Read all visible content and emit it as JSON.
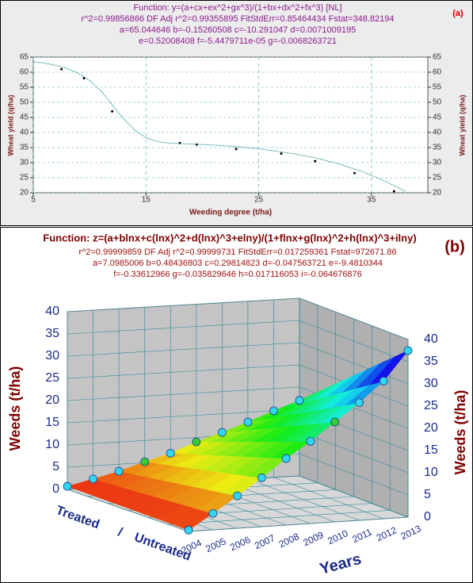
{
  "chart_data": [
    {
      "type": "scatter",
      "title": "Function: y=(a+cx+ex^2+gx^3)/(1+bx+dx^2+fx^3) [NL]",
      "annotations": [
        "r^2=0.99856866 DF Adj r^2=0.99355895 FitStdErr=0.85464434 Fstat=348.82194",
        "a=65.044646 b=-0.15260508 c=-10.291047 d=0.0071009195",
        "e=0.52008408 f=-5.4479711e-05 g=-0.0068263721"
      ],
      "panel_label": "(a)",
      "xlabel": "Weeding degree (t/ha)",
      "ylabel": "Wheat yield (q/ha)",
      "xlim": [
        5,
        40
      ],
      "ylim": [
        20,
        65
      ],
      "xticks": [
        5,
        15,
        25,
        35
      ],
      "yticks": [
        20,
        25,
        30,
        35,
        40,
        45,
        50,
        55,
        60,
        65
      ],
      "grid": true,
      "series": [
        {
          "type": "scatter",
          "color": "#000000",
          "x": [
            7.5,
            9.5,
            12,
            18,
            19.5,
            23,
            27,
            30,
            33.5,
            37
          ],
          "values": [
            61,
            58,
            47,
            36.5,
            36,
            34.5,
            33,
            30.5,
            26.5,
            20.5
          ]
        },
        {
          "type": "line",
          "color": "#3a9a9a",
          "x": [
            5,
            6,
            7,
            8,
            9,
            10,
            11,
            12,
            13,
            14,
            15,
            16,
            17,
            18,
            20,
            22,
            25,
            28,
            30,
            32,
            34,
            36,
            38
          ],
          "values": [
            63.5,
            63,
            62.3,
            61.2,
            59.6,
            57.3,
            53.8,
            49.2,
            44.6,
            40.8,
            38.3,
            37,
            36.5,
            36.3,
            36,
            35.6,
            34.6,
            33,
            31.6,
            29.7,
            27.3,
            24.2,
            20.5
          ]
        }
      ]
    },
    {
      "type": "surface3d",
      "title": "Function: z=(a+blnx+c(lnx)^2+d(lnx)^3+elny)/(1+flnx+g(lnx)^2+h(lnx)^3+ilny)",
      "annotations": [
        "r^2=0.99999859  DF Adj r^2=0.99999731  FitStdErr=0.017259361  Fstat=972671.86",
        "a=7.0985006 b=0.48436803 c=0.29814823 d=-0.047563721 e=-9.4810344",
        "f=-0.33612966 g=-0.035829646 h=0.017116053 i=-0.064676876"
      ],
      "panel_label": "(b)",
      "xlabel": "Years",
      "zlabel": "Weeds (t/ha)",
      "categories": [
        "2004",
        "2005",
        "2006",
        "2007",
        "2008",
        "2009",
        "2010",
        "2011",
        "2012",
        "2013"
      ],
      "y_categories": [
        "Treated",
        "/",
        "Untreated"
      ],
      "zlim": [
        0,
        40
      ],
      "zticks": [
        0,
        5,
        10,
        15,
        20,
        25,
        30,
        35,
        40
      ],
      "series": [
        {
          "values": [
            0.7,
            2,
            3.4,
            5.2,
            6.8,
            9,
            10.8,
            12.8,
            15,
            17
          ],
          "colors": [
            "#33d6f0",
            "#33d6f0",
            "#33d6f0",
            "#33cc33",
            "#33d6f0",
            "#33cc33",
            "#33d6f0",
            "#33d6f0",
            "#33d6f0",
            "#33d6f0"
          ]
        },
        {
          "values": [
            0.3,
            3.7,
            7.3,
            11,
            15,
            18.5,
            22.5,
            26.5,
            31,
            37.5
          ],
          "colors": [
            "#33d6f0",
            "#33d6f0",
            "#33d6f0",
            "#33d6f0",
            "#33d6f0",
            "#33d6f0",
            "#33cc33",
            "#33d6f0",
            "#33d6f0",
            "#33d6f0"
          ]
        }
      ]
    }
  ]
}
